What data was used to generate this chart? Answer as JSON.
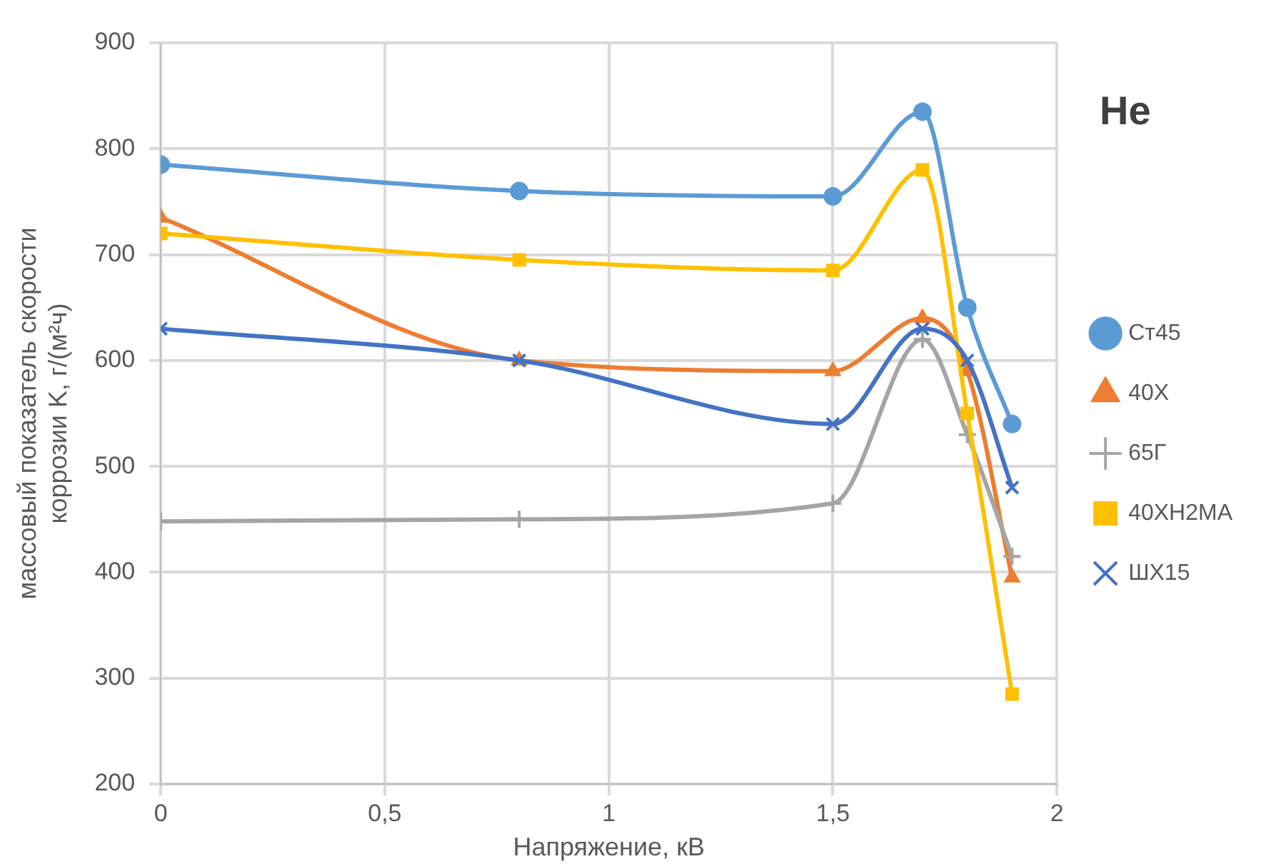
{
  "chart_data": {
    "type": "line",
    "title": "He",
    "xlabel": "Напряжение, кВ",
    "ylabel": "массовый показатель скорости коррозии K, г/(м²ч)",
    "x": [
      0,
      0.8,
      1.5,
      1.7,
      1.8,
      1.9
    ],
    "series": [
      {
        "name": "Ст45",
        "color": "#5b9bd5",
        "marker": "circle",
        "values": [
          785,
          760,
          755,
          835,
          650,
          540
        ]
      },
      {
        "name": "40Х",
        "color": "#ed7d31",
        "marker": "triangle",
        "values": [
          735,
          600,
          590,
          640,
          590,
          395
        ]
      },
      {
        "name": "65Г",
        "color": "#a5a5a5",
        "marker": "cross",
        "values": [
          448,
          450,
          465,
          620,
          530,
          415
        ]
      },
      {
        "name": "40ХН2МА",
        "color": "#ffc000",
        "marker": "square",
        "values": [
          720,
          695,
          685,
          780,
          550,
          285
        ]
      },
      {
        "name": "ШХ15",
        "color": "#4472c4",
        "marker": "x",
        "values": [
          630,
          600,
          540,
          630,
          600,
          480
        ]
      }
    ],
    "xlim": [
      0,
      2
    ],
    "xticks": [
      0,
      {
        "value": 0.5,
        "label": "0,5"
      },
      1,
      {
        "value": 1.5,
        "label": "1,5"
      },
      2
    ],
    "ylim": [
      200,
      900
    ],
    "yticks": [
      200,
      300,
      400,
      500,
      600,
      700,
      800,
      900
    ],
    "grid": true,
    "legend": "right"
  }
}
